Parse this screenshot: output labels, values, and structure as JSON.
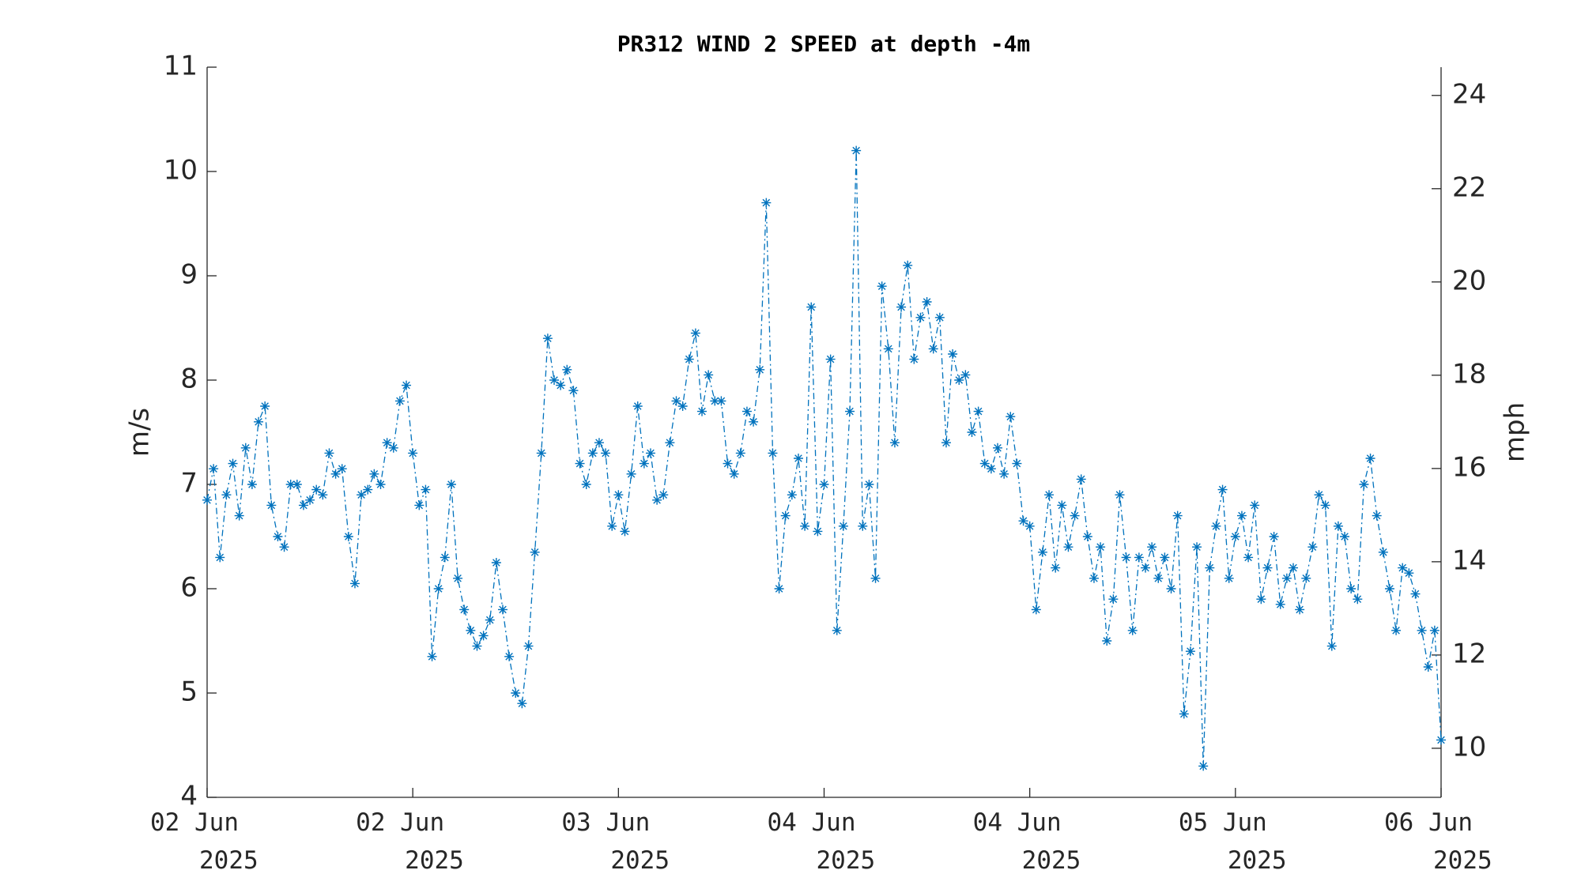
{
  "chart_data": {
    "type": "line",
    "title": "PR312 WIND 2 SPEED at depth -4m",
    "ylabel": "m/s",
    "y2label": "mph",
    "x": [
      0,
      0.5,
      1,
      1.5,
      2,
      2.5,
      3,
      3.5,
      4,
      4.5,
      5,
      5.5,
      6,
      6.5,
      7,
      7.5,
      8,
      8.5,
      9,
      9.5,
      10,
      10.5,
      11,
      11.5,
      12,
      12.5,
      13,
      13.5,
      14,
      14.5,
      15,
      15.5,
      16,
      16.5,
      17,
      17.5,
      18,
      18.5,
      19,
      19.5,
      20,
      20.5,
      21,
      21.5,
      22,
      22.5,
      23,
      23.5,
      24,
      24.5,
      25,
      25.5,
      26,
      26.5,
      27,
      27.5,
      28,
      28.5,
      29,
      29.5,
      30,
      30.5,
      31,
      31.5,
      32,
      32.5,
      33,
      33.5,
      34,
      34.5,
      35,
      35.5,
      36,
      36.5,
      37,
      37.5,
      38,
      38.5,
      39,
      39.5,
      40,
      40.5,
      41,
      41.5,
      42,
      42.5,
      43,
      43.5,
      44,
      44.5,
      45,
      45.5,
      46,
      46.5,
      47,
      47.5,
      48,
      48.5,
      49,
      49.5,
      50,
      50.5,
      51,
      51.5,
      52,
      52.5,
      53,
      53.5,
      54,
      54.5,
      55,
      55.5,
      56,
      56.5,
      57,
      57.5,
      58,
      58.5,
      59,
      59.5,
      60,
      60.5,
      61,
      61.5,
      62,
      62.5,
      63,
      63.5,
      64,
      64.5,
      65,
      65.5,
      66,
      66.5,
      67,
      67.5,
      68,
      68.5,
      69,
      69.5,
      70,
      70.5,
      71,
      71.5,
      72,
      72.5,
      73,
      73.5,
      74,
      74.5,
      75,
      75.5,
      76,
      76.5,
      77,
      77.5,
      78,
      78.5,
      79,
      79.5,
      80,
      80.5,
      81,
      81.5,
      82,
      82.5,
      83,
      83.5,
      84,
      84.5,
      85,
      85.5,
      86,
      86.5,
      87,
      87.5,
      88,
      88.5,
      89,
      89.5,
      90,
      90.5,
      91,
      91.5,
      92,
      92.5,
      93,
      93.5,
      94,
      94.5,
      95,
      95.5,
      96
    ],
    "series": [
      {
        "name": "WIND 2 SPEED",
        "color": "#0072BD",
        "values": [
          6.85,
          7.15,
          6.3,
          6.9,
          7.2,
          6.7,
          7.35,
          7.0,
          7.6,
          7.75,
          6.8,
          6.5,
          6.4,
          7.0,
          7.0,
          6.8,
          6.85,
          6.95,
          6.9,
          7.3,
          7.1,
          7.15,
          6.5,
          6.05,
          6.9,
          6.95,
          7.1,
          7.0,
          7.4,
          7.35,
          7.8,
          7.95,
          7.3,
          6.8,
          6.95,
          5.35,
          6.0,
          6.3,
          7.0,
          6.1,
          5.8,
          5.6,
          5.45,
          5.55,
          5.7,
          6.25,
          5.8,
          5.35,
          5.0,
          4.9,
          5.45,
          6.35,
          7.3,
          8.4,
          8.0,
          7.95,
          8.1,
          7.9,
          7.2,
          7.0,
          7.3,
          7.4,
          7.3,
          6.6,
          6.9,
          6.55,
          7.1,
          7.75,
          7.2,
          7.3,
          6.85,
          6.9,
          7.4,
          7.8,
          7.75,
          8.2,
          8.45,
          7.7,
          8.05,
          7.8,
          7.8,
          7.2,
          7.1,
          7.3,
          7.7,
          7.6,
          8.1,
          9.7,
          7.3,
          6.0,
          6.7,
          6.9,
          7.25,
          6.6,
          8.7,
          6.55,
          7.0,
          8.2,
          5.6,
          6.6,
          7.7,
          10.2,
          6.6,
          7.0,
          6.1,
          8.9,
          8.3,
          7.4,
          8.7,
          9.1,
          8.2,
          8.6,
          8.75,
          8.3,
          8.6,
          7.4,
          8.25,
          8.0,
          8.05,
          7.5,
          7.7,
          7.2,
          7.15,
          7.35,
          7.1,
          7.65,
          7.2,
          6.65,
          6.6,
          5.8,
          6.35,
          6.9,
          6.2,
          6.8,
          6.4,
          6.7,
          7.05,
          6.5,
          6.1,
          6.4,
          5.5,
          5.9,
          6.9,
          6.3,
          5.6,
          6.3,
          6.2,
          6.4,
          6.1,
          6.3,
          6.0,
          6.7,
          4.8,
          5.4,
          6.4,
          4.3,
          6.2,
          6.6,
          6.95,
          6.1,
          6.5,
          6.7,
          6.3,
          6.8,
          5.9,
          6.2,
          6.5,
          5.85,
          6.1,
          6.2,
          5.8,
          6.1,
          6.4,
          6.9,
          6.8,
          5.45,
          6.6,
          6.5,
          6.0,
          5.9,
          7.0,
          7.25,
          6.7,
          6.35,
          6.0,
          5.6,
          6.2,
          6.15,
          5.95,
          5.6,
          5.25,
          5.6,
          4.55
        ]
      }
    ],
    "xlim": [
      0,
      96
    ],
    "xticks": [
      {
        "value": 0,
        "label": "02 Jun\n2025"
      },
      {
        "value": 16,
        "label": "02 Jun\n2025"
      },
      {
        "value": 32,
        "label": "03 Jun\n2025"
      },
      {
        "value": 48,
        "label": "04 Jun\n2025"
      },
      {
        "value": 64,
        "label": "04 Jun\n2025"
      },
      {
        "value": 80,
        "label": "05 Jun\n2025"
      },
      {
        "value": 96,
        "label": "06 Jun\n2025"
      }
    ],
    "ylim": [
      4,
      11
    ],
    "yticks": [
      4,
      5,
      6,
      7,
      8,
      9,
      10,
      11
    ],
    "y2lim": [
      8.948,
      24.606
    ],
    "y2ticks": [
      10,
      12,
      14,
      16,
      18,
      20,
      22,
      24
    ],
    "grid": false
  }
}
